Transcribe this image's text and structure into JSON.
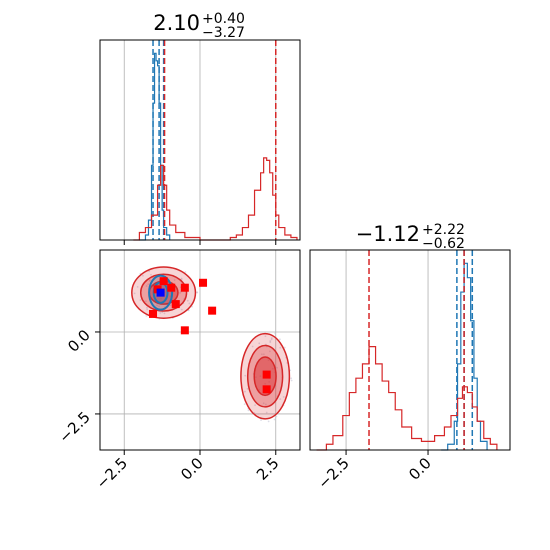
{
  "colors": {
    "red": "#d62728",
    "blue": "#1f77b4",
    "marker_red": "#ff0000",
    "marker_blue": "#0000ff",
    "grid": "#b0b0b0",
    "axis": "#000000"
  },
  "chart_data": {
    "type": "corner",
    "grid": true,
    "panels": [
      {
        "id": "marginal-p1",
        "type": "histogram",
        "title": {
          "main": "2.10",
          "sup": "+0.40",
          "sub": "−3.27"
        },
        "xlim": [
          -3.3,
          3.3
        ],
        "xticks": [
          -2.5,
          0.0,
          2.5
        ],
        "xtick_labels_shown": false,
        "series": [
          {
            "name": "",
            "color": "#1f77b4",
            "points": [
              [
                -2.0,
                0
              ],
              [
                -1.8,
                0.02
              ],
              [
                -1.7,
                0.08
              ],
              [
                -1.6,
                0.3
              ],
              [
                -1.55,
                0.55
              ],
              [
                -1.5,
                0.75
              ],
              [
                -1.45,
                0.72
              ],
              [
                -1.4,
                0.7
              ],
              [
                -1.35,
                0.55
              ],
              [
                -1.3,
                0.3
              ],
              [
                -1.25,
                0.12
              ],
              [
                -1.2,
                0.05
              ],
              [
                -1.1,
                0.02
              ],
              [
                -1.0,
                0
              ]
            ],
            "quantiles": [
              -1.55,
              -1.35,
              -1.2
            ]
          },
          {
            "name": "",
            "color": "#d62728",
            "points": [
              [
                -2.2,
                0
              ],
              [
                -2.0,
                0.03
              ],
              [
                -1.8,
                0.05
              ],
              [
                -1.6,
                0.1
              ],
              [
                -1.4,
                0.22
              ],
              [
                -1.3,
                0.3
              ],
              [
                -1.2,
                0.22
              ],
              [
                -1.1,
                0.12
              ],
              [
                -1.0,
                0.06
              ],
              [
                -0.8,
                0.03
              ],
              [
                -0.5,
                0.01
              ],
              [
                0.0,
                0
              ],
              [
                0.8,
                0
              ],
              [
                1.0,
                0.01
              ],
              [
                1.2,
                0.02
              ],
              [
                1.4,
                0.05
              ],
              [
                1.6,
                0.1
              ],
              [
                1.8,
                0.2
              ],
              [
                2.0,
                0.27
              ],
              [
                2.1,
                0.33
              ],
              [
                2.2,
                0.32
              ],
              [
                2.3,
                0.27
              ],
              [
                2.4,
                0.18
              ],
              [
                2.5,
                0.1
              ],
              [
                2.6,
                0.05
              ],
              [
                2.8,
                0.02
              ],
              [
                3.0,
                0.01
              ],
              [
                3.2,
                0
              ]
            ],
            "quantiles": [
              -1.17,
              2.5
            ]
          }
        ]
      },
      {
        "id": "joint",
        "type": "scatter_contour",
        "xlim": [
          -3.3,
          3.3
        ],
        "ylim": [
          -3.6,
          2.5
        ],
        "xticks": [
          -2.5,
          0.0,
          2.5
        ],
        "yticks": [
          -2.5,
          0.0
        ],
        "xtick_labels": [
          "−2.5",
          "0.0",
          "2.5"
        ],
        "ytick_labels": [
          "−2.5",
          "0.0"
        ],
        "red_clusters": [
          {
            "cx": -1.2,
            "cy": 1.2,
            "sx": 1.05,
            "sy": 0.78
          },
          {
            "cx": 2.15,
            "cy": -1.35,
            "sx": 0.8,
            "sy": 1.3
          }
        ],
        "blue_cluster": {
          "cx": -1.3,
          "cy": 1.2,
          "sx": 0.38,
          "sy": 0.52
        },
        "red_markers": [
          [
            -1.55,
            0.55
          ],
          [
            -1.4,
            1.3
          ],
          [
            -1.2,
            1.55
          ],
          [
            -0.95,
            1.35
          ],
          [
            -0.8,
            0.85
          ],
          [
            -0.5,
            1.35
          ],
          [
            -0.5,
            0.05
          ],
          [
            0.1,
            1.5
          ],
          [
            0.4,
            0.65
          ],
          [
            2.2,
            -1.3
          ],
          [
            2.2,
            -1.75
          ]
        ],
        "blue_marker": [
          -1.3,
          1.2
        ]
      },
      {
        "id": "marginal-p2",
        "type": "histogram",
        "title": {
          "main": "−1.12",
          "sup": "+2.22",
          "sub": "−0.62"
        },
        "xlim": [
          -3.6,
          2.5
        ],
        "xticks": [
          -2.5,
          0.0
        ],
        "xtick_labels": [
          "−2.5",
          "0.0"
        ],
        "series": [
          {
            "name": "",
            "color": "#1f77b4",
            "points": [
              [
                0.4,
                0
              ],
              [
                0.6,
                0.02
              ],
              [
                0.8,
                0.1
              ],
              [
                0.9,
                0.3
              ],
              [
                1.0,
                0.55
              ],
              [
                1.1,
                0.65
              ],
              [
                1.2,
                0.6
              ],
              [
                1.3,
                0.45
              ],
              [
                1.4,
                0.25
              ],
              [
                1.5,
                0.1
              ],
              [
                1.6,
                0.03
              ],
              [
                1.8,
                0
              ]
            ],
            "quantiles": [
              0.88,
              1.1,
              1.35
            ]
          },
          {
            "name": "",
            "color": "#d62728",
            "points": [
              [
                -3.4,
                0
              ],
              [
                -3.1,
                0.02
              ],
              [
                -2.9,
                0.05
              ],
              [
                -2.6,
                0.12
              ],
              [
                -2.4,
                0.2
              ],
              [
                -2.2,
                0.25
              ],
              [
                -2.0,
                0.3
              ],
              [
                -1.8,
                0.36
              ],
              [
                -1.6,
                0.3
              ],
              [
                -1.4,
                0.24
              ],
              [
                -1.2,
                0.2
              ],
              [
                -1.0,
                0.14
              ],
              [
                -0.8,
                0.08
              ],
              [
                -0.5,
                0.04
              ],
              [
                -0.2,
                0.03
              ],
              [
                0.2,
                0.05
              ],
              [
                0.5,
                0.08
              ],
              [
                0.7,
                0.12
              ],
              [
                0.9,
                0.18
              ],
              [
                1.05,
                0.22
              ],
              [
                1.2,
                0.2
              ],
              [
                1.35,
                0.15
              ],
              [
                1.5,
                0.1
              ],
              [
                1.7,
                0.04
              ],
              [
                1.9,
                0.02
              ],
              [
                2.1,
                0
              ]
            ],
            "quantiles": [
              -1.8,
              1.1
            ]
          }
        ]
      }
    ]
  }
}
